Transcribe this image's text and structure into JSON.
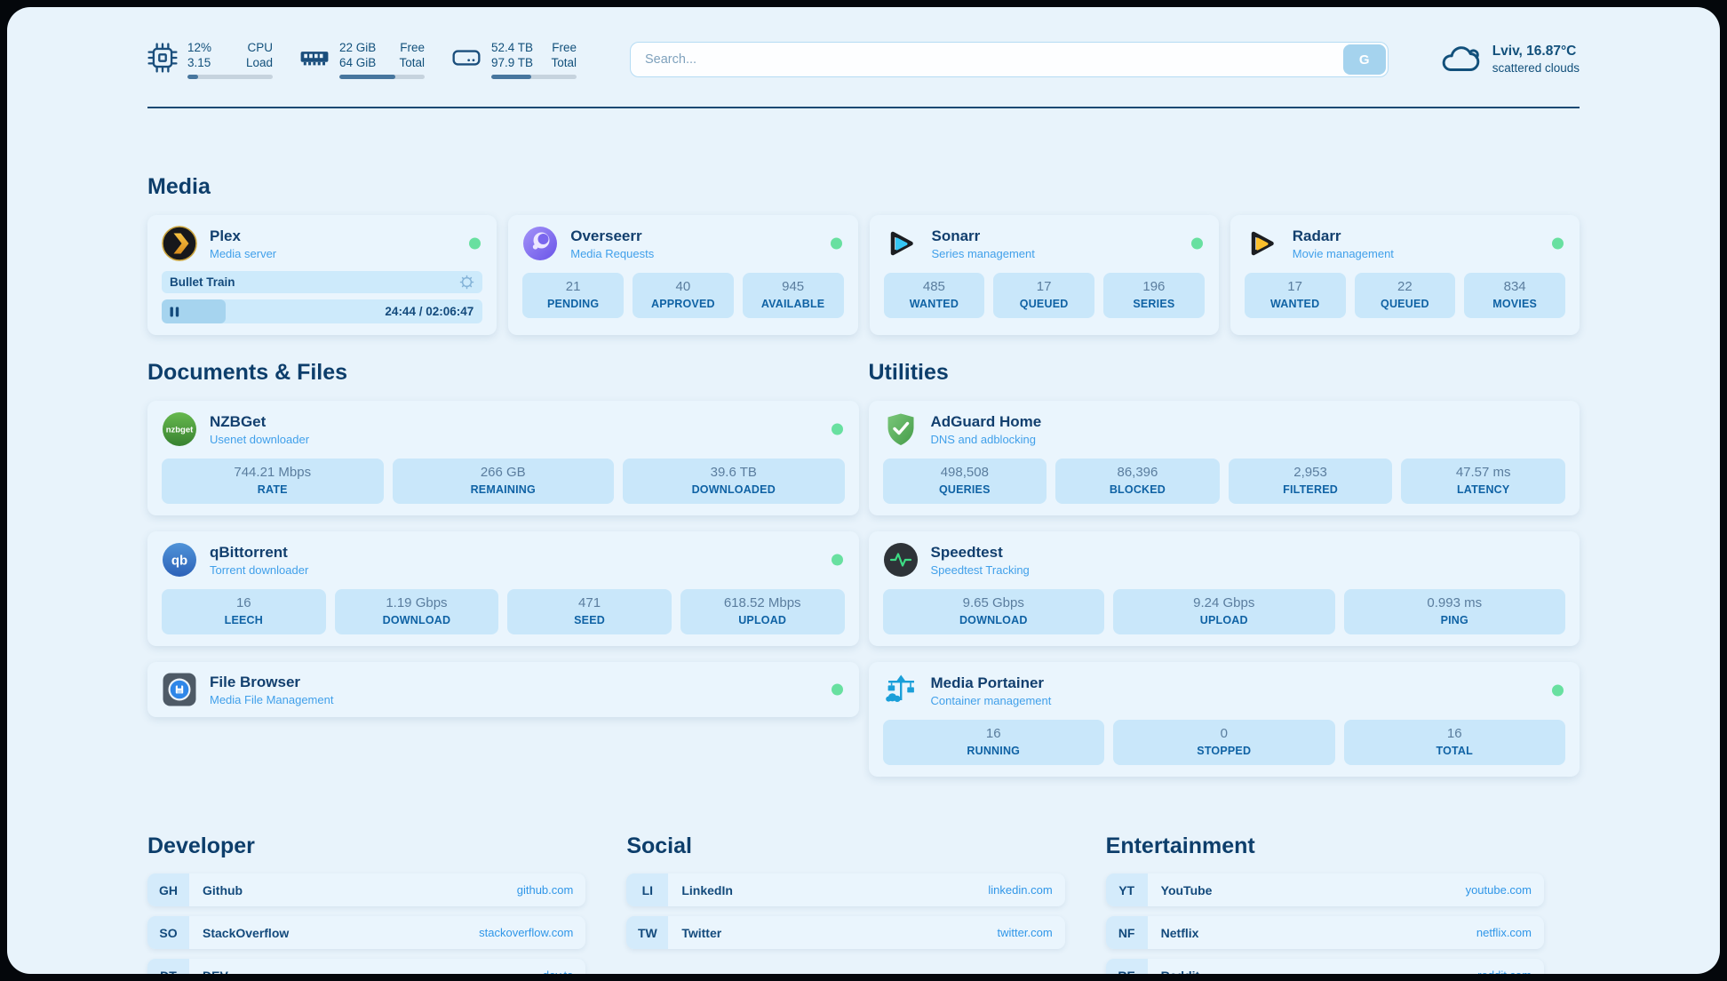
{
  "colors": {
    "accent_navy": "#134a7c",
    "subtitle_blue": "#41a0ea",
    "link_blue": "#2f96e8",
    "status_online_green": "#68e0a0",
    "page_bg": "#e8f3fb"
  },
  "topbar": {
    "cpu": {
      "value_top": "12%",
      "value_bottom": "3.15",
      "label_top": "CPU",
      "label_bottom": "Load",
      "progress": 12
    },
    "ram": {
      "value_top": "22 GiB",
      "value_bottom": "64 GiB",
      "label_top": "Free",
      "label_bottom": "Total",
      "progress": 66
    },
    "disk": {
      "value_top": "52.4 TB",
      "value_bottom": "97.9 TB",
      "label_top": "Free",
      "label_bottom": "Total",
      "progress": 47
    },
    "search": {
      "placeholder": "Search...",
      "button_label": "G"
    },
    "weather": {
      "location": "Lviv, 16.87°C",
      "condition": "scattered clouds"
    }
  },
  "sections": {
    "media": "Media",
    "documents": "Documents & Files",
    "utilities": "Utilities",
    "developer": "Developer",
    "social": "Social",
    "entertainment": "Entertainment"
  },
  "apps": {
    "plex": {
      "name": "Plex",
      "subtitle": "Media server",
      "player": {
        "title": "Bullet Train",
        "time": "24:44 / 02:06:47",
        "progress": 20
      }
    },
    "overseerr": {
      "name": "Overseerr",
      "subtitle": "Media Requests",
      "stats": [
        {
          "value": "21",
          "label": "PENDING"
        },
        {
          "value": "40",
          "label": "APPROVED"
        },
        {
          "value": "945",
          "label": "AVAILABLE"
        }
      ]
    },
    "sonarr": {
      "name": "Sonarr",
      "subtitle": "Series management",
      "stats": [
        {
          "value": "485",
          "label": "WANTED"
        },
        {
          "value": "17",
          "label": "QUEUED"
        },
        {
          "value": "196",
          "label": "SERIES"
        }
      ]
    },
    "radarr": {
      "name": "Radarr",
      "subtitle": "Movie management",
      "stats": [
        {
          "value": "17",
          "label": "WANTED"
        },
        {
          "value": "22",
          "label": "QUEUED"
        },
        {
          "value": "834",
          "label": "MOVIES"
        }
      ]
    },
    "nzbget": {
      "name": "NZBGet",
      "subtitle": "Usenet downloader",
      "icon_text": "nzbget",
      "stats": [
        {
          "value": "744.21 Mbps",
          "label": "RATE"
        },
        {
          "value": "266 GB",
          "label": "REMAINING"
        },
        {
          "value": "39.6 TB",
          "label": "DOWNLOADED"
        }
      ]
    },
    "qbittorrent": {
      "name": "qBittorrent",
      "subtitle": "Torrent downloader",
      "icon_text": "qb",
      "stats": [
        {
          "value": "16",
          "label": "LEECH"
        },
        {
          "value": "1.19 Gbps",
          "label": "DOWNLOAD"
        },
        {
          "value": "471",
          "label": "SEED"
        },
        {
          "value": "618.52 Mbps",
          "label": "UPLOAD"
        }
      ]
    },
    "filebrowser": {
      "name": "File Browser",
      "subtitle": "Media File Management"
    },
    "adguard": {
      "name": "AdGuard Home",
      "subtitle": "DNS and adblocking",
      "stats": [
        {
          "value": "498,508",
          "label": "QUERIES"
        },
        {
          "value": "86,396",
          "label": "BLOCKED"
        },
        {
          "value": "2,953",
          "label": "FILTERED"
        },
        {
          "value": "47.57 ms",
          "label": "LATENCY"
        }
      ]
    },
    "speedtest": {
      "name": "Speedtest",
      "subtitle": "Speedtest Tracking",
      "stats": [
        {
          "value": "9.65 Gbps",
          "label": "DOWNLOAD"
        },
        {
          "value": "9.24 Gbps",
          "label": "UPLOAD"
        },
        {
          "value": "0.993 ms",
          "label": "PING"
        }
      ]
    },
    "portainer": {
      "name": "Media Portainer",
      "subtitle": "Container management",
      "stats": [
        {
          "value": "16",
          "label": "RUNNING"
        },
        {
          "value": "0",
          "label": "STOPPED"
        },
        {
          "value": "16",
          "label": "TOTAL"
        }
      ]
    }
  },
  "bookmarks": {
    "developer": [
      {
        "abbr": "GH",
        "name": "Github",
        "url": "github.com"
      },
      {
        "abbr": "SO",
        "name": "StackOverflow",
        "url": "stackoverflow.com"
      },
      {
        "abbr": "DT",
        "name": "DEV",
        "url": "dev.to"
      }
    ],
    "social": [
      {
        "abbr": "LI",
        "name": "LinkedIn",
        "url": "linkedin.com"
      },
      {
        "abbr": "TW",
        "name": "Twitter",
        "url": "twitter.com"
      }
    ],
    "entertainment": [
      {
        "abbr": "YT",
        "name": "YouTube",
        "url": "youtube.com"
      },
      {
        "abbr": "NF",
        "name": "Netflix",
        "url": "netflix.com"
      },
      {
        "abbr": "RE",
        "name": "Reddit",
        "url": "reddit.com"
      }
    ]
  }
}
